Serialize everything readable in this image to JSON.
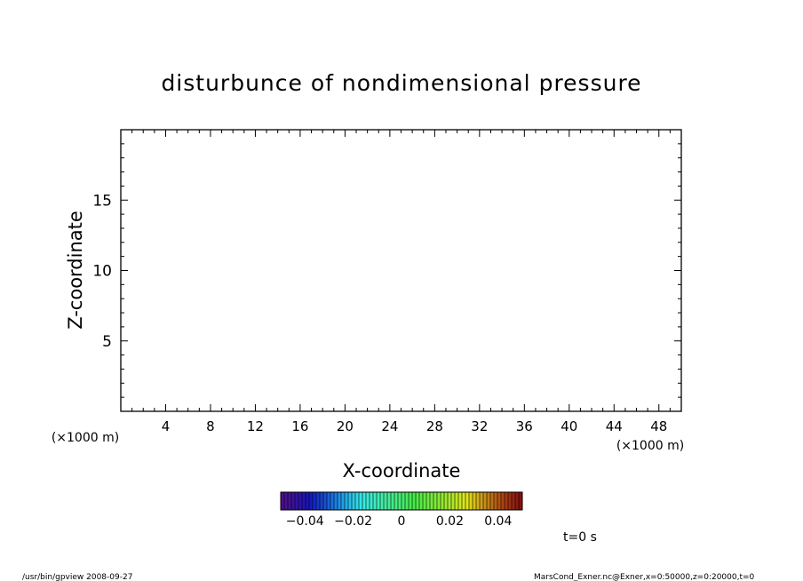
{
  "chart_data": {
    "type": "heatmap",
    "title": "disturbunce of nondimensional pressure",
    "xlabel": "X-coordinate",
    "ylabel": "Z-coordinate",
    "xunit": "(×1000 m)",
    "yunit": "(×1000 m)",
    "xlim": [
      0,
      50
    ],
    "ylim": [
      0,
      20
    ],
    "xticks": [
      4,
      8,
      12,
      16,
      20,
      24,
      28,
      32,
      36,
      40,
      44,
      48
    ],
    "xtick_labels": [
      "4",
      "8",
      "12",
      "16",
      "20",
      "24",
      "28",
      "32",
      "36",
      "40",
      "44",
      "48"
    ],
    "yticks": [
      5,
      10,
      15
    ],
    "ytick_labels": [
      "5",
      "10",
      "15"
    ],
    "grid": false,
    "colorbar": {
      "range": [
        -0.05,
        0.05
      ],
      "ticks": [
        -0.04,
        -0.02,
        0,
        0.02,
        0.04
      ],
      "tick_labels": [
        "−0.04",
        "−0.02",
        "0",
        "0.02",
        "0.04"
      ]
    },
    "time_label": "t=0 s"
  },
  "footer": {
    "left": "/usr/bin/gpview   2008-09-27",
    "right": "MarsCond_Exner.nc@Exner,x=0:50000,z=0:20000,t=0"
  }
}
